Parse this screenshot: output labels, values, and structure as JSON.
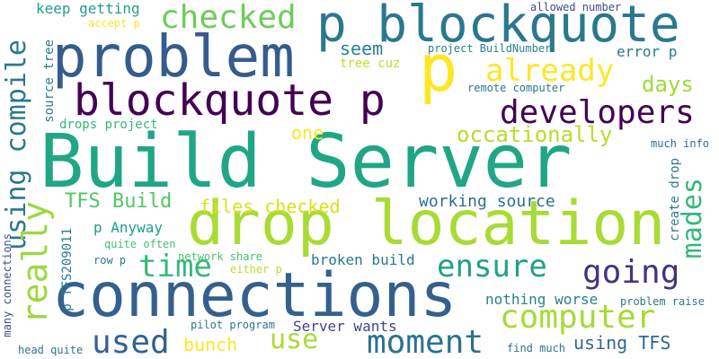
{
  "words": [
    {
      "id": "build-server",
      "text": "Build Server",
      "color": "#21a685"
    },
    {
      "id": "drop-location",
      "text": "drop location",
      "color": "#a8db34"
    },
    {
      "id": "connections",
      "text": "connections",
      "color": "#35608d"
    },
    {
      "id": "problem",
      "text": "problem",
      "color": "#365c8d"
    },
    {
      "id": "p-blockquote",
      "text": "p blockquote",
      "color": "#2a788e"
    },
    {
      "id": "blockquote-p",
      "text": "blockquote p",
      "color": "#440154"
    },
    {
      "id": "p",
      "text": "p",
      "color": "#fde725"
    },
    {
      "id": "checked",
      "text": "checked",
      "color": "#6ccd5a"
    },
    {
      "id": "already",
      "text": "already",
      "color": "#fde725"
    },
    {
      "id": "developers",
      "text": "developers",
      "color": "#440154"
    },
    {
      "id": "using-compile",
      "text": "using compile",
      "color": "#2a788e"
    },
    {
      "id": "really",
      "text": "really",
      "color": "#9bd93c"
    },
    {
      "id": "time",
      "text": "time",
      "color": "#35b779"
    },
    {
      "id": "going",
      "text": "going",
      "color": "#46337e"
    },
    {
      "id": "ensure",
      "text": "ensure",
      "color": "#1fa187"
    },
    {
      "id": "computer",
      "text": "computer",
      "color": "#a5db36"
    },
    {
      "id": "moment",
      "text": "moment",
      "color": "#2c728e"
    },
    {
      "id": "used",
      "text": "used",
      "color": "#33638d"
    },
    {
      "id": "use",
      "text": "use",
      "color": "#a8db34"
    },
    {
      "id": "mades",
      "text": "mades",
      "color": "#35b779"
    },
    {
      "id": "occationally",
      "text": "occationally",
      "color": "#b5de2b"
    },
    {
      "id": "days",
      "text": "days",
      "color": "#a0da39"
    },
    {
      "id": "seem",
      "text": "seem",
      "color": "#25848e"
    },
    {
      "id": "tfs-build",
      "text": "TFS Build",
      "color": "#54c568"
    },
    {
      "id": "files-checked",
      "text": "files checked",
      "color": "#d8e219"
    },
    {
      "id": "working-source",
      "text": "working source",
      "color": "#2e6e8e"
    },
    {
      "id": "one",
      "text": "one",
      "color": "#fde725"
    },
    {
      "id": "p-anyway",
      "text": "p Anyway",
      "color": "#1f9e89"
    },
    {
      "id": "broken-build",
      "text": "broken build",
      "color": "#2a788e"
    },
    {
      "id": "bunch",
      "text": "bunch",
      "color": "#fde725"
    },
    {
      "id": "server-wants",
      "text": "Server wants",
      "color": "#414487"
    },
    {
      "id": "nothing-worse",
      "text": "nothing worse",
      "color": "#26828e"
    },
    {
      "id": "using-tfs",
      "text": "using TFS",
      "color": "#31688e"
    },
    {
      "id": "keep-getting",
      "text": "keep getting",
      "color": "#1f9e89"
    },
    {
      "id": "accept-p",
      "text": "accept p",
      "color": "#fde725"
    },
    {
      "id": "allowed-number",
      "text": "allowed number",
      "color": "#3e4989"
    },
    {
      "id": "project-buildnumber",
      "text": "project BuildNumber",
      "color": "#26828e"
    },
    {
      "id": "error-p",
      "text": "error p",
      "color": "#2a788e"
    },
    {
      "id": "tree-cuz",
      "text": "tree cuz",
      "color": "#bddf26"
    },
    {
      "id": "source-tree",
      "text": "source tree",
      "color": "#2a788e"
    },
    {
      "id": "remote-computer",
      "text": "remote computer",
      "color": "#2a788e"
    },
    {
      "id": "drops-project",
      "text": "drops project",
      "color": "#35b779"
    },
    {
      "id": "much-info",
      "text": "much info",
      "color": "#31688e"
    },
    {
      "id": "create-drop",
      "text": "create drop",
      "color": "#2a788e"
    },
    {
      "id": "p-tfs",
      "text": "p TFS209011",
      "color": "#2a788e"
    },
    {
      "id": "quite-often",
      "text": "quite often",
      "color": "#44bf70"
    },
    {
      "id": "network-share",
      "text": "network share",
      "color": "#4ac16d"
    },
    {
      "id": "row-p",
      "text": "row p",
      "color": "#2a788e"
    },
    {
      "id": "either-p",
      "text": "either p",
      "color": "#b8de29"
    },
    {
      "id": "many-connections",
      "text": "many connections",
      "color": "#3b528b"
    },
    {
      "id": "problem-raise",
      "text": "problem raise",
      "color": "#2a788e"
    },
    {
      "id": "pilot-program",
      "text": "pilot program",
      "color": "#2a788e"
    },
    {
      "id": "head-quite",
      "text": "head quite",
      "color": "#2a788e"
    },
    {
      "id": "find-much",
      "text": "find much",
      "color": "#2a788e"
    }
  ]
}
